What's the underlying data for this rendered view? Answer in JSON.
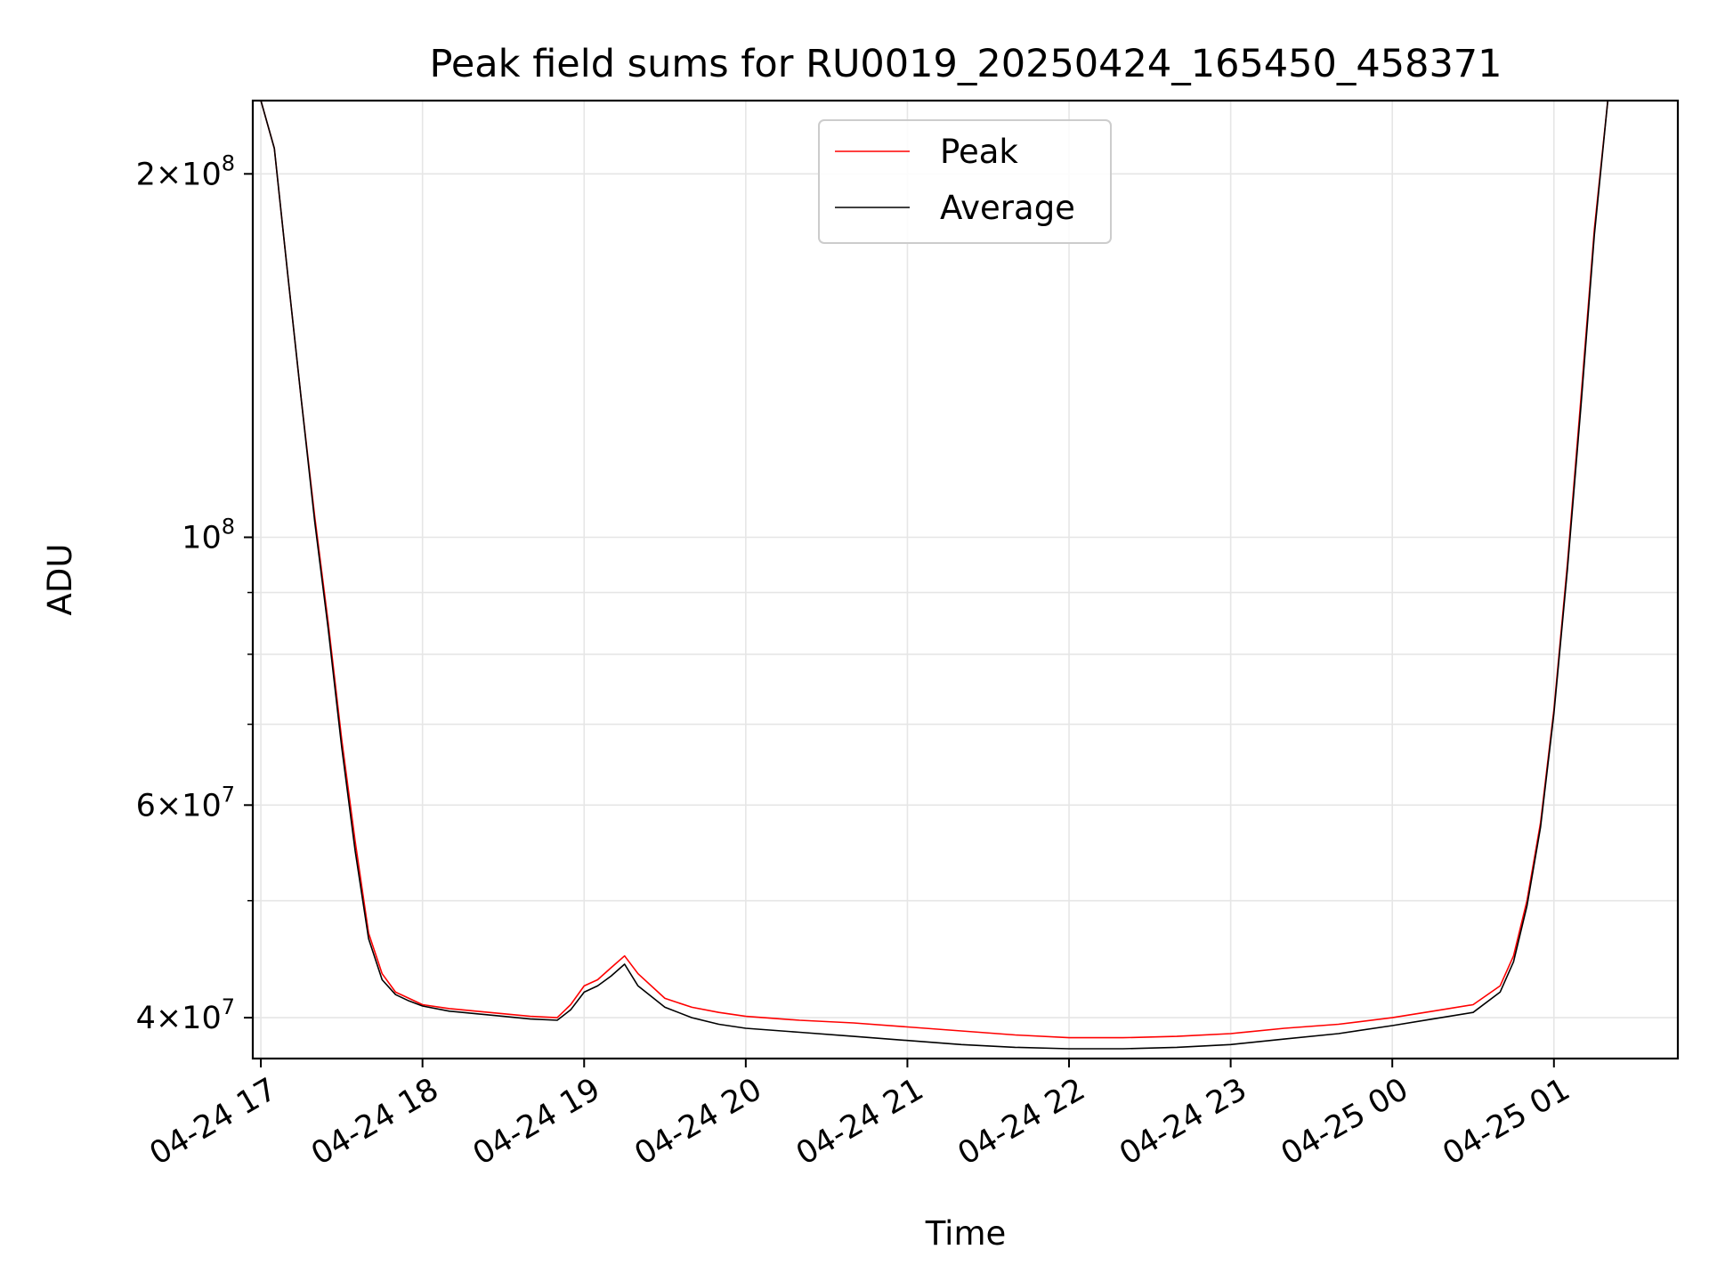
{
  "chart_data": {
    "type": "line",
    "title": "Peak field sums for RU0019_20250424_165450_458371",
    "xlabel": "Time",
    "ylabel": "ADU",
    "yscale": "log",
    "ylim": [
      37000000,
      230000000
    ],
    "xlim": [
      "04-24 16:57",
      "04-25 01:46"
    ],
    "grid": true,
    "legend_position": "top-center",
    "x_ticks": [
      "04-24 17",
      "04-24 18",
      "04-24 19",
      "04-24 20",
      "04-24 21",
      "04-24 22",
      "04-24 23",
      "04-25 00",
      "04-25 01"
    ],
    "y_ticks": [
      {
        "value": 40000000,
        "mantissa": "4",
        "exponent": "7"
      },
      {
        "value": 60000000,
        "mantissa": "6",
        "exponent": "7"
      },
      {
        "value": 100000000,
        "mantissa": "",
        "exponent": "8"
      },
      {
        "value": 200000000,
        "mantissa": "2",
        "exponent": "8"
      }
    ],
    "y_minor_ticks": [
      50000000,
      70000000,
      80000000,
      90000000
    ],
    "series": [
      {
        "name": "Peak",
        "color": "#ff0000",
        "x": [
          "04-24 17:00",
          "04-24 17:05",
          "04-24 17:10",
          "04-24 17:15",
          "04-24 17:20",
          "04-24 17:25",
          "04-24 17:30",
          "04-24 17:35",
          "04-24 17:40",
          "04-24 17:45",
          "04-24 17:50",
          "04-24 17:55",
          "04-24 18:00",
          "04-24 18:10",
          "04-24 18:20",
          "04-24 18:30",
          "04-24 18:40",
          "04-24 18:50",
          "04-24 18:55",
          "04-24 19:00",
          "04-24 19:05",
          "04-24 19:10",
          "04-24 19:15",
          "04-24 19:20",
          "04-24 19:30",
          "04-24 19:40",
          "04-24 19:50",
          "04-24 20:00",
          "04-24 20:20",
          "04-24 20:40",
          "04-24 21:00",
          "04-24 21:20",
          "04-24 21:40",
          "04-24 22:00",
          "04-24 22:20",
          "04-24 22:40",
          "04-24 23:00",
          "04-24 23:20",
          "04-24 23:40",
          "04-25 00:00",
          "04-25 00:15",
          "04-25 00:30",
          "04-25 00:40",
          "04-25 00:45",
          "04-25 00:50",
          "04-25 00:55",
          "04-25 01:00",
          "04-25 01:05",
          "04-25 01:10",
          "04-25 01:15",
          "04-25 01:20"
        ],
        "values": [
          230000000,
          210000000,
          165000000,
          130000000,
          104000000,
          85000000,
          68000000,
          56000000,
          47000000,
          43500000,
          42000000,
          41500000,
          41000000,
          40700000,
          40500000,
          40300000,
          40100000,
          40000000,
          41000000,
          42500000,
          43000000,
          44000000,
          45000000,
          43500000,
          41500000,
          40800000,
          40400000,
          40100000,
          39800000,
          39600000,
          39300000,
          39000000,
          38700000,
          38500000,
          38500000,
          38600000,
          38800000,
          39200000,
          39500000,
          40000000,
          40500000,
          41000000,
          42500000,
          45000000,
          50000000,
          58000000,
          72000000,
          95000000,
          130000000,
          180000000,
          230000000
        ]
      },
      {
        "name": "Average",
        "color": "#000000",
        "x": [
          "04-24 17:00",
          "04-24 17:05",
          "04-24 17:10",
          "04-24 17:15",
          "04-24 17:20",
          "04-24 17:25",
          "04-24 17:30",
          "04-24 17:35",
          "04-24 17:40",
          "04-24 17:45",
          "04-24 17:50",
          "04-24 17:55",
          "04-24 18:00",
          "04-24 18:10",
          "04-24 18:20",
          "04-24 18:30",
          "04-24 18:40",
          "04-24 18:50",
          "04-24 18:55",
          "04-24 19:00",
          "04-24 19:05",
          "04-24 19:10",
          "04-24 19:15",
          "04-24 19:20",
          "04-24 19:30",
          "04-24 19:40",
          "04-24 19:50",
          "04-24 20:00",
          "04-24 20:20",
          "04-24 20:40",
          "04-24 21:00",
          "04-24 21:20",
          "04-24 21:40",
          "04-24 22:00",
          "04-24 22:20",
          "04-24 22:40",
          "04-24 23:00",
          "04-24 23:20",
          "04-24 23:40",
          "04-25 00:00",
          "04-25 00:15",
          "04-25 00:30",
          "04-25 00:40",
          "04-25 00:45",
          "04-25 00:50",
          "04-25 00:55",
          "04-25 01:00",
          "04-25 01:05",
          "04-25 01:10",
          "04-25 01:15",
          "04-25 01:20"
        ],
        "values": [
          230000000,
          210000000,
          165000000,
          130000000,
          103000000,
          84000000,
          67000000,
          55000000,
          46500000,
          43000000,
          41800000,
          41300000,
          40900000,
          40500000,
          40300000,
          40100000,
          39900000,
          39800000,
          40600000,
          42000000,
          42500000,
          43300000,
          44300000,
          42500000,
          40800000,
          40000000,
          39500000,
          39200000,
          38900000,
          38600000,
          38300000,
          38000000,
          37800000,
          37700000,
          37700000,
          37800000,
          38000000,
          38400000,
          38800000,
          39400000,
          39900000,
          40400000,
          42000000,
          44500000,
          49500000,
          57500000,
          71500000,
          94000000,
          128000000,
          178000000,
          230000000
        ]
      }
    ]
  }
}
